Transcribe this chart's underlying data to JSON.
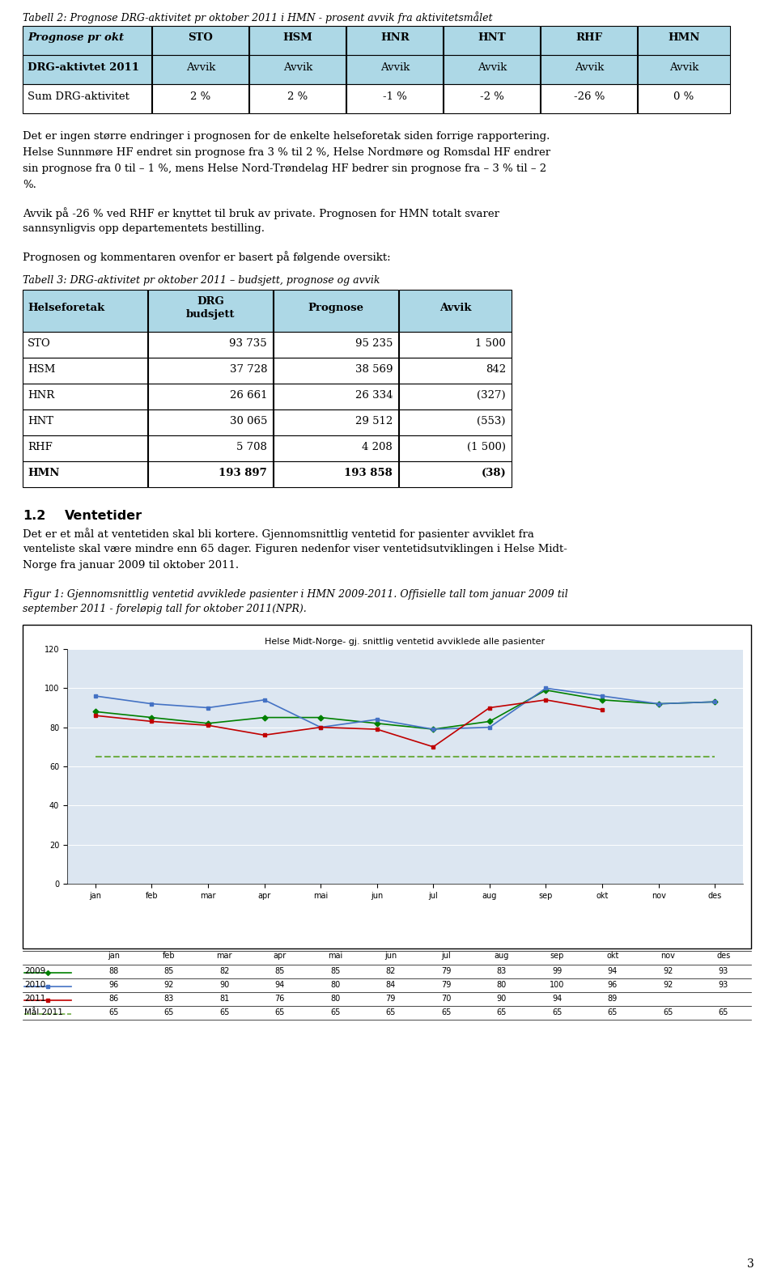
{
  "page_bg": "#ffffff",
  "title1": "Tabell 2: Prognose DRG-aktivitet pr oktober 2011 i HMN - prosent avvik fra aktivitetsmålet",
  "table1_header_row": [
    "Prognose pr okt",
    "STO",
    "HSM",
    "HNR",
    "HNT",
    "RHF",
    "HMN"
  ],
  "table1_row2": [
    "DRG-aktivtet 2011",
    "Avvik",
    "Avvik",
    "Avvik",
    "Avvik",
    "Avvik",
    "Avvik"
  ],
  "table1_row3": [
    "Sum DRG-aktivitet",
    "2 %",
    "2 %",
    "-1 %",
    "-2 %",
    "-26 %",
    "0 %"
  ],
  "table1_header_bg": "#add8e6",
  "para1_lines": [
    "Det er ingen større endringer i prognosen for de enkelte helseforetak siden forrige rapportering.",
    "Helse Sunnmøre HF endret sin prognose fra 3 % til 2 %, Helse Nordmøre og Romsdal HF endrer",
    "sin prognose fra 0 til – 1 %, mens Helse Nord-Trøndelag HF bedrer sin prognose fra – 3 % til – 2",
    "%."
  ],
  "para2_lines": [
    "Avvik på -26 % ved RHF er knyttet til bruk av private. Prognosen for HMN totalt svarer",
    "sannsynligvis opp departementets bestilling."
  ],
  "para3": "Prognosen og kommentaren ovenfor er basert på følgende oversikt:",
  "title3": "Tabell 3: DRG-aktivitet pr oktober 2011 – budsjett, prognose og avvik",
  "table3_header": [
    "Helseforetak",
    "DRG\nbudsjett",
    "Prognose",
    "Avvik"
  ],
  "table3_rows": [
    [
      "STO",
      "93 735",
      "95 235",
      "1 500"
    ],
    [
      "HSM",
      "37 728",
      "38 569",
      "842"
    ],
    [
      "HNR",
      "26 661",
      "26 334",
      "(327)"
    ],
    [
      "HNT",
      "30 065",
      "29 512",
      "(553)"
    ],
    [
      "RHF",
      "5 708",
      "4 208",
      "(1 500)"
    ],
    [
      "HMN",
      "193 897",
      "193 858",
      "(38)"
    ]
  ],
  "section_header_num": "1.2",
  "section_header_txt": "Ventetider",
  "para4_lines": [
    "Det er et mål at ventetiden skal bli kortere. Gjennomsnittlig ventetid for pasienter avviklet fra",
    "venteliste skal være mindre enn 65 dager. Figuren nedenfor viser ventetidsutviklingen i Helse Midt-",
    "Norge fra januar 2009 til oktober 2011."
  ],
  "fig_cap_lines": [
    "Figur 1: Gjennomsnittlig ventetid avviklede pasienter i HMN 2009-2011. Offisielle tall tom januar 2009 til",
    "september 2011 - foreløpig tall for oktober 2011(NPR)."
  ],
  "chart_title": "Helse Midt-Norge- gj. snittlig ventetid avviklede alle pasienter",
  "months": [
    "jan",
    "feb",
    "mar",
    "apr",
    "mai",
    "jun",
    "jul",
    "aug",
    "sep",
    "okt",
    "nov",
    "des"
  ],
  "y2009": [
    88,
    85,
    82,
    85,
    85,
    82,
    79,
    83,
    99,
    94,
    92,
    93
  ],
  "y2010": [
    96,
    92,
    90,
    94,
    80,
    84,
    79,
    80,
    100,
    96,
    92,
    93
  ],
  "y2011": [
    86,
    83,
    81,
    76,
    80,
    79,
    70,
    90,
    94,
    89,
    null,
    null
  ],
  "ymal": [
    65,
    65,
    65,
    65,
    65,
    65,
    65,
    65,
    65,
    65,
    65,
    65
  ],
  "table_data_rows": [
    [
      "2009",
      "88",
      "85",
      "82",
      "85",
      "85",
      "82",
      "79",
      "83",
      "99",
      "94",
      "92",
      "93"
    ],
    [
      "2010",
      "96",
      "92",
      "90",
      "94",
      "80",
      "84",
      "79",
      "80",
      "100",
      "96",
      "92",
      "93"
    ],
    [
      "2011",
      "86",
      "83",
      "81",
      "76",
      "80",
      "79",
      "70",
      "90",
      "94",
      "89",
      "",
      ""
    ],
    [
      "Mål 2011",
      "65",
      "65",
      "65",
      "65",
      "65",
      "65",
      "65",
      "65",
      "65",
      "65",
      "65",
      "65"
    ]
  ],
  "color_2009": "#008000",
  "color_2010": "#4472c4",
  "color_2011": "#c00000",
  "color_mal": "#70ad47",
  "page_number": "3",
  "chart_bg": "#dce6f1"
}
